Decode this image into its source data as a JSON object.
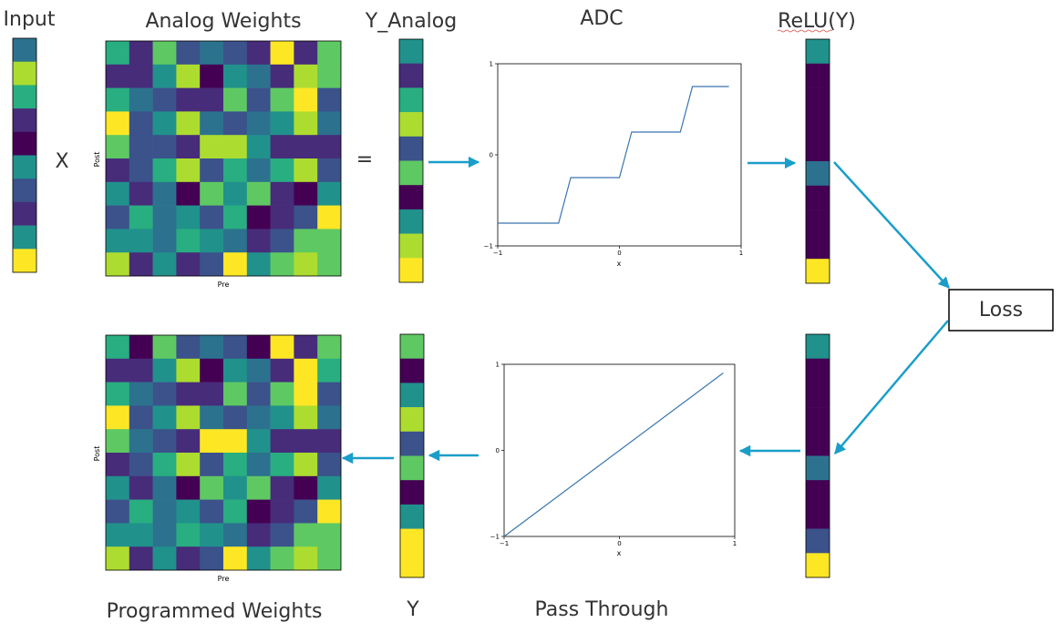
{
  "labels": {
    "input": "Input",
    "analog_weights": "Analog Weights",
    "y_analog": "Y_Analog",
    "adc": "ADC",
    "relu": "ReLU(Y)",
    "loss": "Loss",
    "programmed_weights": "Programmed Weights",
    "y": "Y",
    "pass_through": "Pass Through",
    "multiply": "X",
    "equals": "="
  },
  "axis_labels": {
    "pre": "Pre",
    "post": "Post",
    "x": "x"
  },
  "colors": {
    "arrow": "#1a9ec9",
    "curve": "#3a75b0",
    "border": "#000000"
  },
  "palette": [
    "#440154",
    "#472c7a",
    "#3b528b",
    "#2c728e",
    "#21918c",
    "#28ae80",
    "#5ec962",
    "#addc30",
    "#fde725"
  ],
  "vectors": {
    "input": [
      3,
      7,
      5,
      1,
      0,
      4,
      2,
      1,
      4,
      8
    ],
    "y_analog": [
      4,
      1,
      5,
      7,
      2,
      6,
      0,
      4,
      7,
      8
    ],
    "relu_top": [
      4,
      0,
      0,
      0,
      0,
      3,
      0,
      0,
      0,
      8
    ],
    "relu_bottom": [
      4,
      0,
      0,
      0,
      0,
      3,
      0,
      0,
      2,
      8
    ],
    "y": [
      6,
      0,
      4,
      7,
      2,
      6,
      0,
      4,
      8,
      8
    ]
  },
  "matrices": {
    "analog_weights": [
      [
        5,
        1,
        6,
        2,
        3,
        2,
        1,
        8,
        1,
        6
      ],
      [
        1,
        1,
        4,
        7,
        0,
        4,
        3,
        1,
        7,
        6
      ],
      [
        5,
        3,
        2,
        1,
        1,
        6,
        2,
        6,
        8,
        2
      ],
      [
        8,
        2,
        4,
        7,
        3,
        2,
        3,
        4,
        7,
        3
      ],
      [
        6,
        2,
        2,
        1,
        7,
        7,
        4,
        1,
        1,
        1
      ],
      [
        1,
        2,
        5,
        7,
        2,
        5,
        3,
        5,
        7,
        2
      ],
      [
        4,
        1,
        3,
        0,
        6,
        4,
        6,
        1,
        0,
        4
      ],
      [
        2,
        5,
        3,
        4,
        2,
        5,
        0,
        1,
        2,
        8
      ],
      [
        4,
        4,
        3,
        5,
        4,
        3,
        1,
        2,
        6,
        6
      ],
      [
        7,
        1,
        4,
        1,
        2,
        8,
        4,
        6,
        7,
        6
      ]
    ],
    "programmed_weights": [
      [
        5,
        0,
        6,
        2,
        3,
        2,
        0,
        8,
        1,
        6
      ],
      [
        1,
        1,
        4,
        7,
        0,
        4,
        3,
        1,
        8,
        5
      ],
      [
        5,
        3,
        2,
        1,
        1,
        6,
        2,
        6,
        8,
        2
      ],
      [
        8,
        2,
        4,
        7,
        3,
        2,
        3,
        4,
        7,
        3
      ],
      [
        6,
        3,
        2,
        1,
        8,
        8,
        4,
        1,
        1,
        1
      ],
      [
        1,
        2,
        5,
        7,
        2,
        5,
        3,
        5,
        7,
        2
      ],
      [
        4,
        1,
        3,
        0,
        6,
        4,
        6,
        1,
        0,
        4
      ],
      [
        2,
        5,
        3,
        4,
        2,
        5,
        0,
        1,
        2,
        8
      ],
      [
        4,
        4,
        3,
        5,
        4,
        3,
        1,
        2,
        6,
        6
      ],
      [
        7,
        1,
        4,
        1,
        2,
        8,
        4,
        6,
        7,
        6
      ]
    ]
  },
  "chart_data": [
    {
      "type": "line",
      "name": "adc",
      "x": [
        -1,
        -0.5,
        -0.4,
        0.0,
        0.1,
        0.5,
        0.6,
        0.9
      ],
      "y": [
        -0.75,
        -0.75,
        -0.25,
        -0.25,
        0.25,
        0.25,
        0.75,
        0.75
      ],
      "xlabel": "x",
      "xlim": [
        -1,
        1
      ],
      "ylim": [
        -1,
        1
      ],
      "xticks": [
        "−1",
        "0",
        "1"
      ],
      "yticks": [
        "−1",
        "0",
        "1"
      ]
    },
    {
      "type": "line",
      "name": "pass_through",
      "x": [
        -1,
        0.9
      ],
      "y": [
        -1,
        0.9
      ],
      "xlabel": "x",
      "xlim": [
        -1,
        1
      ],
      "ylim": [
        -1,
        1
      ],
      "xticks": [
        "−1",
        "0",
        "1"
      ],
      "yticks": [
        "−1",
        "0",
        "1"
      ]
    }
  ]
}
